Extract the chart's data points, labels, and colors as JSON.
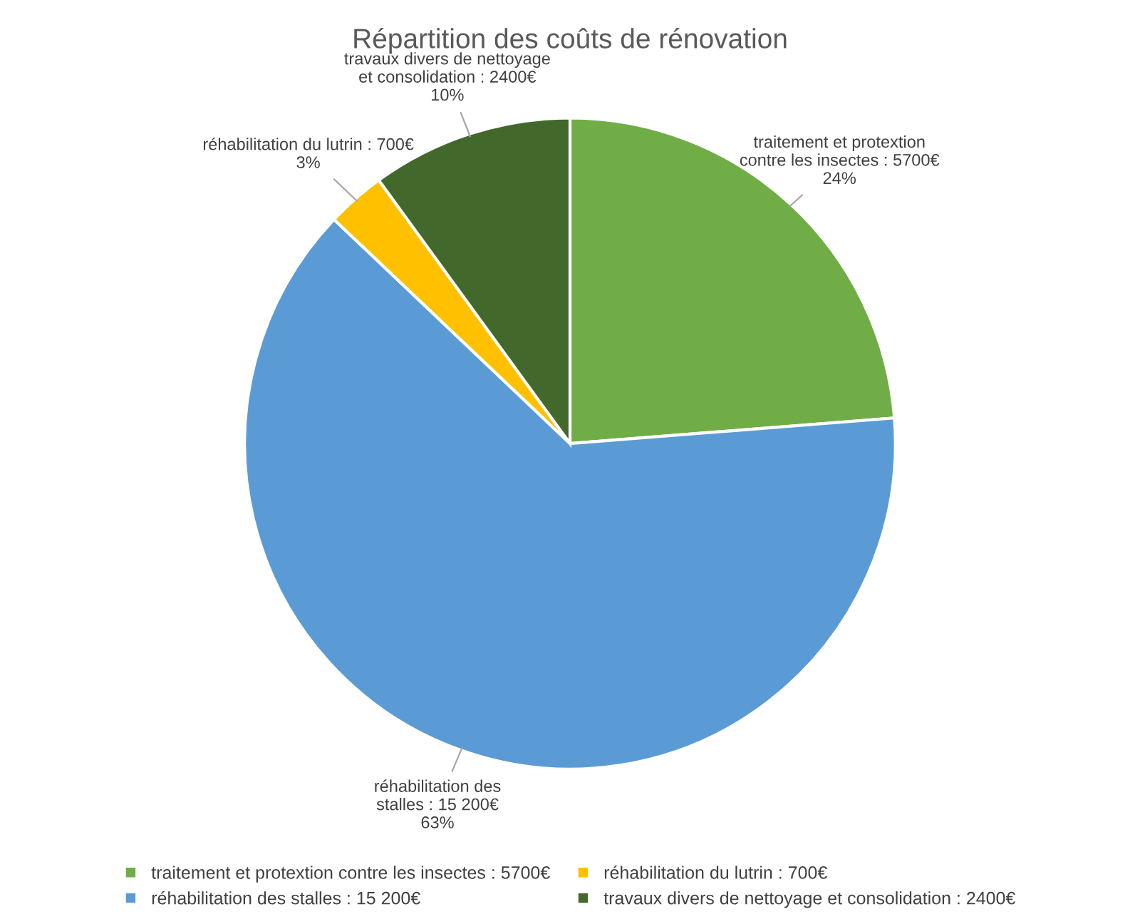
{
  "chart_data": {
    "type": "pie",
    "title": "Répartition des coûts de rénovation",
    "categories": [
      "traitement et protextion contre les insectes : 5700€",
      "réhabilitation des stalles : 15 200€",
      "réhabilitation du lutrin : 700€",
      "travaux divers de nettoyage et consolidation : 2400€"
    ],
    "values": [
      5700,
      15200,
      700,
      2400
    ],
    "colors": [
      "#70ad47",
      "#5b9bd5",
      "#ffc000",
      "#43682b"
    ],
    "value_labels": [
      "traitement et protextion contre les insectes : 5700€ 24%",
      "réhabilitation des stalles : 15 200€ 63%",
      "réhabilitation du lutrin : 700€ 3%",
      "travaux divers de nettoyage et consolidation : 2400€ 10%"
    ],
    "legend": "bottom"
  }
}
